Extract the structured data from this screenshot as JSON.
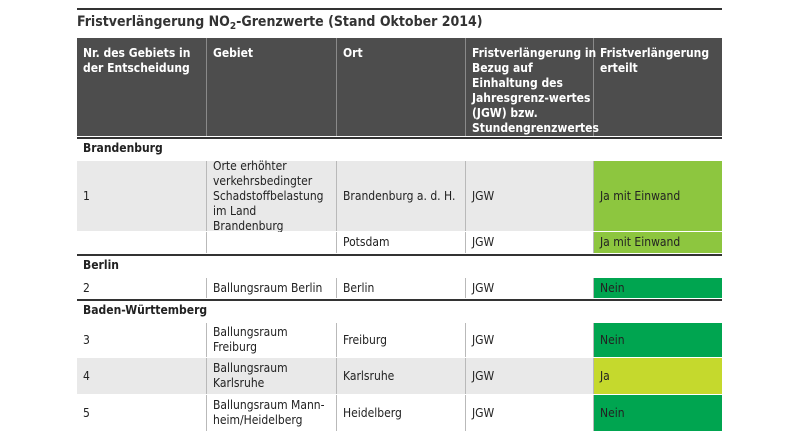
{
  "title": {
    "prefix": "Fristverlängerung NO",
    "subscript": "2",
    "suffix": "-Grenzwerte (Stand Oktober 2014)"
  },
  "colors": {
    "header_bg": "#4d4d4d",
    "ja_mit_einwand": "#8dc63f",
    "nein": "#00a550",
    "ja": "#c5d92d",
    "alt_row": "#e9e9e9"
  },
  "headers": [
    "Nr. des Gebiets in der Entscheidung",
    "Gebiet",
    "Ort",
    "Fristverlängerung in Bezug auf Einhaltung des Jahresgrenz-werte­s (JGW) bzw. Stundengrenzwertes (SGW)",
    "Fristverlängerung erteilt"
  ],
  "sections": [
    {
      "name": "Brandenburg",
      "rows": [
        {
          "nr": "1",
          "gebiet": "Orte erhöhter verkehrsbedingter Schadstoffbelastung im Land Brandenburg",
          "ort": "Brandenburg a. d. H.",
          "grenzwert": "JGW",
          "status": "Ja mit Einwand",
          "status_color": "#8dc63f"
        },
        {
          "nr": "",
          "gebiet": "",
          "ort": "Potsdam",
          "grenzwert": "JGW",
          "status": "Ja mit Einwand",
          "status_color": "#8dc63f"
        }
      ]
    },
    {
      "name": "Berlin",
      "rows": [
        {
          "nr": "2",
          "gebiet": "Ballungsraum Berlin",
          "ort": "Berlin",
          "grenzwert": "JGW",
          "status": "Nein",
          "status_color": "#00a550"
        }
      ]
    },
    {
      "name": "Baden-Württemberg",
      "rows": [
        {
          "nr": "3",
          "gebiet": "Ballungsraum Freiburg",
          "ort": "Freiburg",
          "grenzwert": "JGW",
          "status": "Nein",
          "status_color": "#00a550"
        },
        {
          "nr": "4",
          "gebiet": "Ballungsraum Karlsruhe",
          "ort": "Karlsruhe",
          "grenzwert": "JGW",
          "status": "Ja",
          "status_color": "#c5d92d"
        },
        {
          "nr": "5",
          "gebiet": "Ballungsraum Mann-heim/Heidelberg",
          "ort": "Heidelberg",
          "grenzwert": "JGW",
          "status": "Nein",
          "status_color": "#00a550"
        }
      ]
    }
  ]
}
